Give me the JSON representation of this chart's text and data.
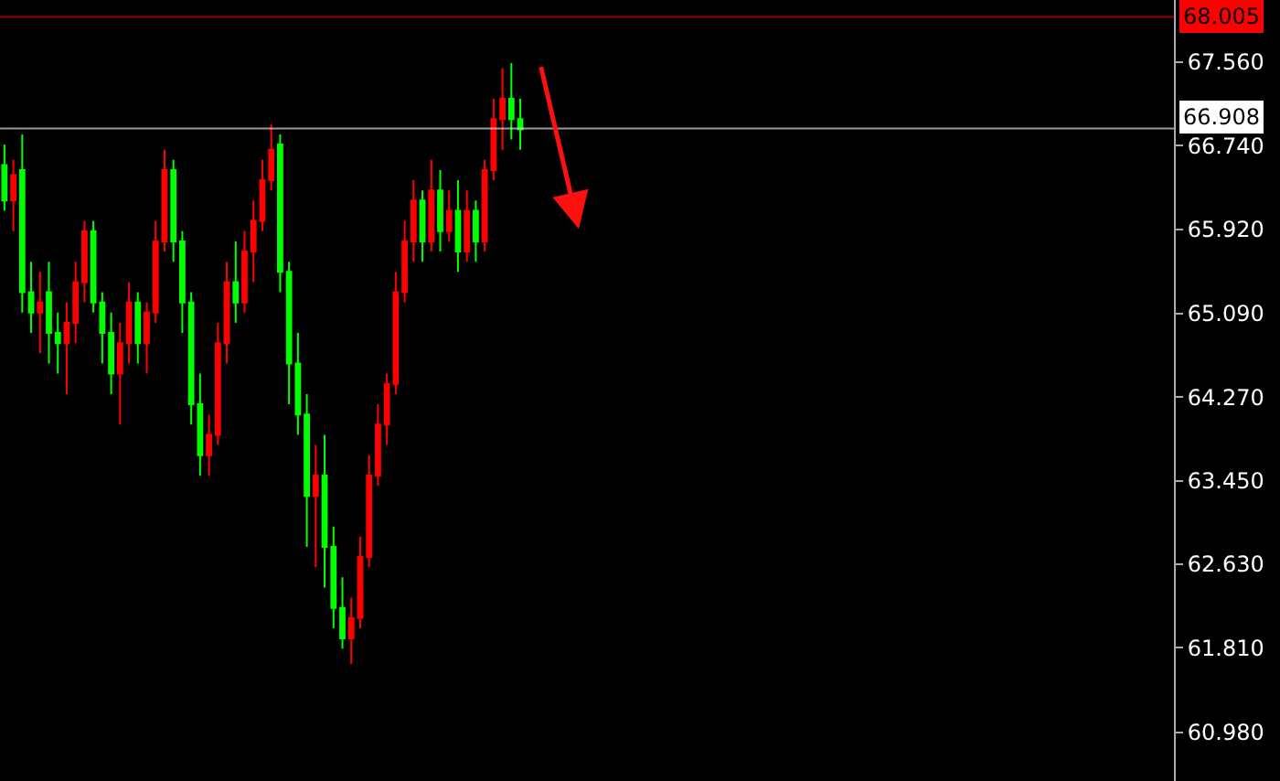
{
  "chart_data": {
    "type": "candlestick",
    "categories": [
      null,
      null,
      null,
      null,
      null,
      null,
      null,
      null,
      null,
      null,
      null,
      null,
      null,
      null,
      null,
      null,
      null,
      null,
      null,
      null,
      null,
      null,
      null,
      null,
      null,
      null,
      null,
      null,
      null,
      null,
      null,
      null,
      null,
      null,
      null,
      null,
      null,
      null,
      null,
      null,
      null,
      null,
      null,
      null,
      null,
      null,
      null,
      null,
      null,
      null,
      null,
      null,
      null,
      null,
      null,
      null,
      null,
      null,
      null,
      null,
      null,
      null,
      null,
      null,
      null,
      null,
      null,
      null,
      null,
      null,
      null,
      null,
      null,
      null,
      null,
      null,
      null,
      null,
      null,
      null,
      null,
      null,
      null,
      null,
      null,
      null,
      null,
      null,
      null,
      null,
      null,
      null,
      null,
      null,
      null,
      null,
      null,
      null,
      null,
      null,
      null,
      null,
      null,
      null,
      null,
      null,
      null,
      null,
      null,
      null,
      null,
      null,
      null,
      null,
      null,
      null,
      null,
      null,
      null,
      null,
      null,
      null,
      null,
      null,
      null,
      null,
      null,
      null,
      null,
      null,
      null,
      null
    ],
    "ohlc": [
      [
        66.55,
        66.75,
        66.1,
        66.2
      ],
      [
        66.2,
        66.6,
        65.9,
        66.45
      ],
      [
        66.5,
        66.85,
        65.1,
        65.3
      ],
      [
        65.3,
        65.6,
        64.9,
        65.1
      ],
      [
        65.1,
        65.5,
        64.7,
        65.2
      ],
      [
        65.3,
        65.6,
        64.6,
        64.9
      ],
      [
        64.9,
        65.1,
        64.5,
        64.8
      ],
      [
        64.8,
        65.2,
        64.3,
        65.0
      ],
      [
        65.0,
        65.6,
        64.8,
        65.4
      ],
      [
        65.4,
        66.0,
        65.2,
        65.9
      ],
      [
        65.9,
        66.0,
        65.1,
        65.2
      ],
      [
        65.2,
        65.3,
        64.6,
        64.9
      ],
      [
        64.9,
        65.1,
        64.3,
        64.5
      ],
      [
        64.5,
        65.0,
        64.0,
        64.8
      ],
      [
        64.8,
        65.4,
        64.6,
        65.2
      ],
      [
        65.2,
        65.3,
        64.6,
        64.8
      ],
      [
        64.8,
        65.2,
        64.5,
        65.1
      ],
      [
        65.1,
        66.0,
        65.0,
        65.8
      ],
      [
        65.8,
        66.7,
        65.7,
        66.5
      ],
      [
        66.5,
        66.6,
        65.6,
        65.8
      ],
      [
        65.8,
        65.9,
        64.9,
        65.2
      ],
      [
        65.2,
        65.3,
        64.0,
        64.2
      ],
      [
        64.2,
        64.5,
        63.5,
        63.7
      ],
      [
        63.7,
        64.1,
        63.5,
        63.9
      ],
      [
        63.9,
        65.0,
        63.8,
        64.8
      ],
      [
        64.8,
        65.6,
        64.6,
        65.4
      ],
      [
        65.4,
        65.8,
        65.0,
        65.2
      ],
      [
        65.2,
        65.9,
        65.1,
        65.7
      ],
      [
        65.7,
        66.2,
        65.4,
        66.0
      ],
      [
        66.0,
        66.6,
        65.9,
        66.4
      ],
      [
        66.4,
        66.95,
        66.3,
        66.7
      ],
      [
        66.75,
        66.85,
        65.3,
        65.5
      ],
      [
        65.5,
        65.6,
        64.2,
        64.6
      ],
      [
        64.6,
        64.9,
        63.9,
        64.1
      ],
      [
        64.1,
        64.3,
        62.8,
        63.3
      ],
      [
        63.3,
        63.8,
        62.6,
        63.5
      ],
      [
        63.5,
        63.9,
        62.4,
        62.8
      ],
      [
        62.8,
        63.0,
        62.0,
        62.2
      ],
      [
        62.2,
        62.5,
        61.8,
        61.9
      ],
      [
        61.9,
        62.3,
        61.65,
        62.1
      ],
      [
        62.1,
        62.9,
        62.0,
        62.7
      ],
      [
        62.7,
        63.7,
        62.6,
        63.5
      ],
      [
        63.5,
        64.2,
        63.4,
        64.0
      ],
      [
        64.0,
        64.5,
        63.8,
        64.4
      ],
      [
        64.4,
        65.5,
        64.3,
        65.3
      ],
      [
        65.3,
        66.0,
        65.2,
        65.8
      ],
      [
        65.8,
        66.4,
        65.6,
        66.2
      ],
      [
        66.2,
        66.3,
        65.6,
        65.8
      ],
      [
        65.8,
        66.6,
        65.7,
        66.3
      ],
      [
        66.3,
        66.5,
        65.7,
        65.9
      ],
      [
        65.9,
        66.3,
        65.8,
        66.1
      ],
      [
        66.1,
        66.4,
        65.5,
        65.7
      ],
      [
        65.7,
        66.3,
        65.6,
        66.1
      ],
      [
        66.1,
        66.2,
        65.6,
        65.8
      ],
      [
        65.8,
        66.6,
        65.7,
        66.5
      ],
      [
        66.5,
        67.2,
        66.4,
        67.0
      ],
      [
        67.0,
        67.5,
        66.7,
        67.2
      ],
      [
        67.2,
        67.55,
        66.8,
        67.0
      ],
      [
        67.0,
        67.2,
        66.7,
        66.9
      ],
      null,
      null,
      null,
      null,
      null,
      null,
      null,
      null,
      null,
      null,
      null,
      null,
      null,
      null,
      null,
      null,
      null,
      null,
      null,
      null,
      null,
      null,
      null,
      null,
      null,
      null,
      null,
      null,
      null,
      null,
      null,
      null,
      null,
      null,
      null,
      null,
      null,
      null,
      null,
      null,
      null,
      null,
      null,
      null,
      null,
      null,
      null,
      null,
      null,
      null,
      null,
      null,
      null,
      null,
      null,
      null,
      null,
      null,
      null,
      null,
      null,
      null,
      null,
      null,
      null,
      null,
      null,
      null,
      null,
      null,
      null,
      null,
      null
    ],
    "colors": [
      "#00ff00",
      "#ff0000",
      "#00ff00",
      "#00ff00",
      "#ff0000",
      "#00ff00",
      "#00ff00",
      "#ff0000",
      "#ff0000",
      "#ff0000",
      "#00ff00",
      "#00ff00",
      "#00ff00",
      "#ff0000",
      "#ff0000",
      "#00ff00",
      "#ff0000",
      "#ff0000",
      "#ff0000",
      "#00ff00",
      "#00ff00",
      "#00ff00",
      "#00ff00",
      "#ff0000",
      "#ff0000",
      "#ff0000",
      "#00ff00",
      "#ff0000",
      "#ff0000",
      "#ff0000",
      "#ff0000",
      "#00ff00",
      "#00ff00",
      "#00ff00",
      "#00ff00",
      "#ff0000",
      "#00ff00",
      "#00ff00",
      "#00ff00",
      "#ff0000",
      "#ff0000",
      "#ff0000",
      "#ff0000",
      "#ff0000",
      "#ff0000",
      "#ff0000",
      "#ff0000",
      "#00ff00",
      "#ff0000",
      "#00ff00",
      "#ff0000",
      "#00ff00",
      "#ff0000",
      "#00ff00",
      "#ff0000",
      "#ff0000",
      "#ff0000",
      "#00ff00",
      "#00ff00",
      null,
      null,
      null,
      null,
      null,
      null,
      null,
      null,
      null,
      null,
      null,
      null,
      null,
      null,
      null,
      null,
      null,
      null,
      null,
      null,
      null,
      null,
      null,
      null,
      null,
      null,
      null,
      null,
      null,
      null,
      null,
      null,
      null,
      null,
      null,
      null,
      null,
      null,
      null,
      null,
      null,
      null,
      null,
      null,
      null,
      null,
      null,
      null,
      null,
      null,
      null,
      null,
      null,
      null,
      null,
      null,
      null,
      null,
      null,
      null,
      null,
      null,
      null,
      null,
      null,
      null,
      null,
      null,
      null,
      null,
      null,
      null,
      null
    ],
    "ylim": [
      60.5,
      68.17
    ],
    "yticks": [
      {
        "value": 60.98,
        "label": "60.980"
      },
      {
        "value": 61.81,
        "label": "61.810"
      },
      {
        "value": 62.63,
        "label": "62.630"
      },
      {
        "value": 63.45,
        "label": "63.450"
      },
      {
        "value": 64.27,
        "label": "64.270"
      },
      {
        "value": 65.09,
        "label": "65.090"
      },
      {
        "value": 65.92,
        "label": "65.920"
      },
      {
        "value": 66.74,
        "label": "66.740"
      },
      {
        "value": 67.56,
        "label": "67.560"
      }
    ],
    "ref_lines": [
      {
        "axis": "y",
        "value": 68.005,
        "label": "68.005",
        "color": "#ff0000"
      },
      {
        "axis": "y",
        "value": 66.908,
        "label": "66.908",
        "color": "#ffffff"
      }
    ],
    "grid": false,
    "legend": false
  }
}
